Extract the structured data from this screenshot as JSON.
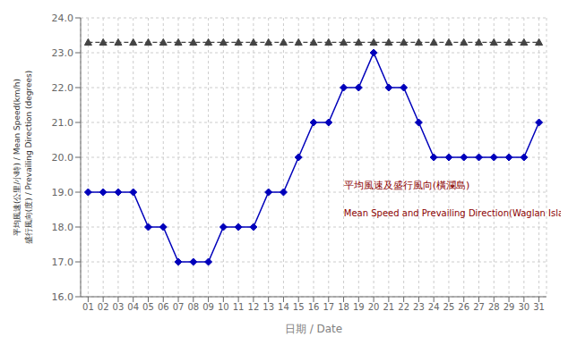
{
  "chart_data": {
    "type": "line",
    "x": [
      1,
      2,
      3,
      4,
      5,
      6,
      7,
      8,
      9,
      10,
      11,
      12,
      13,
      14,
      15,
      16,
      17,
      18,
      19,
      20,
      21,
      22,
      23,
      24,
      25,
      26,
      27,
      28,
      29,
      30,
      31
    ],
    "series": [
      {
        "color": "#444444",
        "marker": "triangle",
        "line_style": "dashed",
        "values": [
          23.3,
          23.3,
          23.3,
          23.3,
          23.3,
          23.3,
          23.3,
          23.3,
          23.3,
          23.3,
          23.3,
          23.3,
          23.3,
          23.3,
          23.3,
          23.3,
          23.3,
          23.3,
          23.3,
          23.3,
          23.3,
          23.3,
          23.3,
          23.3,
          23.3,
          23.3,
          23.3,
          23.3,
          23.3,
          23.3,
          23.3
        ]
      },
      {
        "color": "#0000BB",
        "marker": "diamond",
        "line_style": "solid",
        "values": [
          19,
          19,
          19,
          19,
          18,
          18,
          17,
          17,
          17,
          18,
          18,
          18,
          19,
          19,
          20,
          21,
          21,
          22,
          22,
          23,
          22,
          22,
          21,
          20,
          20,
          20,
          20,
          20,
          20,
          20,
          21
        ]
      }
    ],
    "xlabel": "日期 / Date",
    "ylabel": "平均風速(公里/小時) / Mean Speed(km/h)\n盛行風向(度) / Prevailing Direction (degrees)",
    "xlim": [
      0.5,
      31.5
    ],
    "xticks": [
      {
        "value": 1,
        "label": "01"
      },
      {
        "value": 2,
        "label": "02"
      },
      {
        "value": 3,
        "label": "03"
      },
      {
        "value": 4,
        "label": "04"
      },
      {
        "value": 5,
        "label": "05"
      },
      {
        "value": 6,
        "label": "06"
      },
      {
        "value": 7,
        "label": "07"
      },
      {
        "value": 8,
        "label": "08"
      },
      {
        "value": 9,
        "label": "09"
      },
      {
        "value": 10,
        "label": "10"
      },
      {
        "value": 11,
        "label": "11"
      },
      {
        "value": 12,
        "label": "12"
      },
      {
        "value": 13,
        "label": "13"
      },
      {
        "value": 14,
        "label": "14"
      },
      {
        "value": 15,
        "label": "15"
      },
      {
        "value": 16,
        "label": "16"
      },
      {
        "value": 17,
        "label": "17"
      },
      {
        "value": 18,
        "label": "18"
      },
      {
        "value": 19,
        "label": "19"
      },
      {
        "value": 20,
        "label": "20"
      },
      {
        "value": 21,
        "label": "21"
      },
      {
        "value": 22,
        "label": "22"
      },
      {
        "value": 23,
        "label": "23"
      },
      {
        "value": 24,
        "label": "24"
      },
      {
        "value": 25,
        "label": "25"
      },
      {
        "value": 26,
        "label": "26"
      },
      {
        "value": 27,
        "label": "27"
      },
      {
        "value": 28,
        "label": "28"
      },
      {
        "value": 29,
        "label": "29"
      },
      {
        "value": 30,
        "label": "30"
      },
      {
        "value": 31,
        "label": "31"
      }
    ],
    "ylim": [
      16.0,
      24.0
    ],
    "yticks": [
      {
        "value": 16,
        "label": "16.0"
      },
      {
        "value": 17,
        "label": "17.0"
      },
      {
        "value": 18,
        "label": "18.0"
      },
      {
        "value": 19,
        "label": "19.0"
      },
      {
        "value": 20,
        "label": "20.0"
      },
      {
        "value": 21,
        "label": "21.0"
      },
      {
        "value": 22,
        "label": "22.0"
      },
      {
        "value": 23,
        "label": "23.0"
      },
      {
        "value": 24,
        "label": "24.0"
      }
    ],
    "grid": true,
    "annotations": [
      {
        "text": "平均風速及盛行風向(橫瀾島)",
        "color": "#8B0000"
      },
      {
        "text": "Mean Speed and Prevailing Direction(Waglan Island)",
        "color": "#8B0000"
      }
    ]
  }
}
